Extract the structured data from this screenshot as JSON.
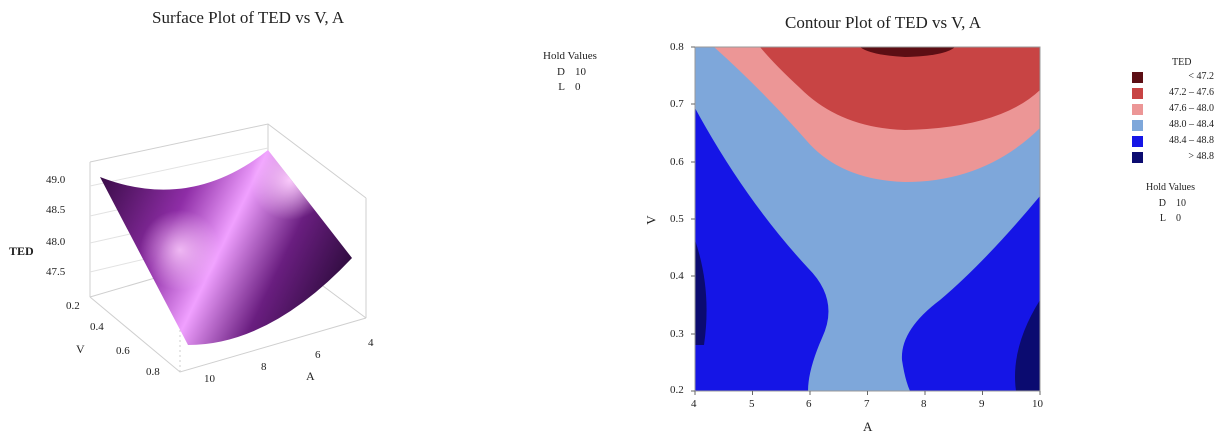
{
  "surface": {
    "title": "Surface Plot of TED vs V, A",
    "z_label": "TED",
    "v_label": "V",
    "a_label": "A",
    "z_ticks": [
      "49.0",
      "48.5",
      "48.0",
      "47.5"
    ],
    "v_ticks": [
      "0.2",
      "0.4",
      "0.6",
      "0.8"
    ],
    "a_ticks": [
      "10",
      "8",
      "6",
      "4"
    ],
    "colors": {
      "dark": "#2a0a35",
      "mid": "#7a1d8f",
      "light": "#f4a4ff"
    }
  },
  "hold_values_1": {
    "title": "Hold Values",
    "rows": [
      {
        "name": "D",
        "value": "10"
      },
      {
        "name": "L",
        "value": "0"
      }
    ]
  },
  "contour": {
    "title": "Contour Plot of TED vs V, A",
    "xlabel": "A",
    "ylabel": "V",
    "x_ticks": [
      "4",
      "5",
      "6",
      "7",
      "8",
      "9",
      "10"
    ],
    "y_ticks": [
      "0.8",
      "0.7",
      "0.6",
      "0.5",
      "0.4",
      "0.3",
      "0.2"
    ]
  },
  "legend": {
    "title": "TED",
    "items": [
      {
        "label": "<  47.2",
        "color": "#5c0e14"
      },
      {
        "label": "47.2  –  47.6",
        "color": "#c84444"
      },
      {
        "label": "47.6  –  48.0",
        "color": "#ec9696"
      },
      {
        "label": "48.0  –  48.4",
        "color": "#7ea7da"
      },
      {
        "label": "48.4  –  48.8",
        "color": "#1515e6"
      },
      {
        "label": ">  48.8",
        "color": "#0b0b70"
      }
    ]
  },
  "hold_values_2": {
    "title": "Hold Values",
    "rows": [
      {
        "name": "D",
        "value": "10"
      },
      {
        "name": "L",
        "value": "0"
      }
    ]
  },
  "chart_data": [
    {
      "type": "surface",
      "title": "Surface Plot of TED vs V, A",
      "x_label": "A",
      "y_label": "V",
      "z_label": "TED",
      "x_range": [
        4,
        10
      ],
      "y_range": [
        0.2,
        0.8
      ],
      "z_range": [
        47.3,
        49.1
      ],
      "x_ticks": [
        10,
        8,
        6,
        4
      ],
      "y_ticks": [
        0.2,
        0.4,
        0.6,
        0.8
      ],
      "z_ticks": [
        49.0,
        48.5,
        48.0,
        47.5
      ],
      "grid": true,
      "fixed": {
        "D": 10,
        "L": 0
      },
      "A": [
        4,
        7,
        10
      ],
      "V": [
        0.2,
        0.5,
        0.8
      ],
      "TED": [
        [
          48.9,
          48.3,
          48.9
        ],
        [
          48.7,
          48.1,
          48.7
        ],
        [
          47.9,
          47.3,
          47.9
        ]
      ]
    },
    {
      "type": "contour",
      "title": "Contour Plot of TED vs V, A",
      "xlabel": "A",
      "ylabel": "V",
      "xlim": [
        4,
        10
      ],
      "ylim": [
        0.2,
        0.8
      ],
      "x_ticks": [
        4,
        5,
        6,
        7,
        8,
        9,
        10
      ],
      "y_ticks": [
        0.2,
        0.3,
        0.4,
        0.5,
        0.6,
        0.7,
        0.8
      ],
      "legend_title": "TED",
      "legend_position": "right",
      "levels": [
        "< 47.2",
        "47.2 – 47.6",
        "47.6 – 48.0",
        "48.0 – 48.4",
        "48.4 – 48.8",
        "> 48.8"
      ],
      "fixed": {
        "D": 10,
        "L": 0
      },
      "A": [
        4,
        7,
        10
      ],
      "V": [
        0.2,
        0.5,
        0.8
      ],
      "TED": [
        [
          48.9,
          48.3,
          48.9
        ],
        [
          48.7,
          48.1,
          48.7
        ],
        [
          47.9,
          47.3,
          47.9
        ]
      ]
    }
  ]
}
